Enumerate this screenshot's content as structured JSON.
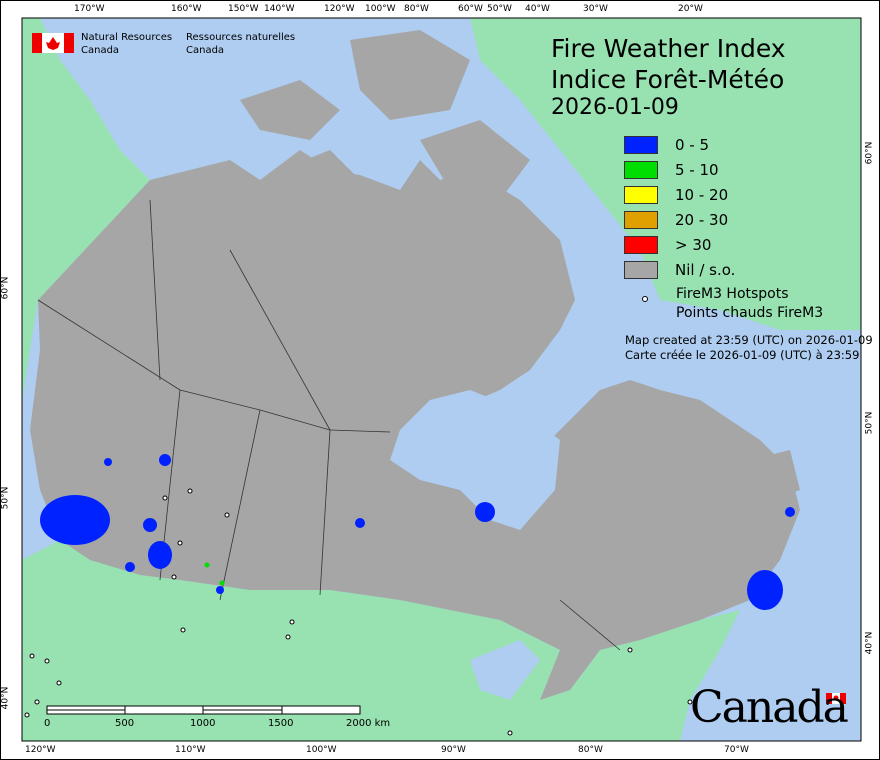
{
  "header": {
    "en_line1": "Natural Resources",
    "en_line2": "Canada",
    "fr_line1": "Ressources naturelles",
    "fr_line2": "Canada"
  },
  "title": {
    "en": "Fire Weather Index",
    "fr": "Indice Forêt-Météo",
    "date": "2026-01-09"
  },
  "legend": [
    {
      "label": "0 - 5",
      "color": "#0022ff"
    },
    {
      "label": "5 - 10",
      "color": "#00dd00"
    },
    {
      "label": "10 - 20",
      "color": "#ffff00"
    },
    {
      "label": "20 - 30",
      "color": "#e0a000"
    },
    {
      "label": "> 30",
      "color": "#ff0000"
    },
    {
      "label": "Nil / s.o.",
      "color": "#a6a6a6"
    }
  ],
  "hotspots": {
    "en": "FireM3 Hotspots",
    "fr": "Points chauds FireM3"
  },
  "created": {
    "en": "Map created at 23:59 (UTC) on 2026-01-09",
    "fr": "Carte créée le 2026-01-09 (UTC) à 23:59"
  },
  "top_ticks": [
    "170°W",
    "160°W",
    "150°W",
    "140°W",
    "120°W",
    "100°W",
    "80°W",
    "60°W",
    "50°W",
    "40°W",
    "30°W",
    "20°W"
  ],
  "bottom_ticks": [
    "120°W",
    "110°W",
    "100°W",
    "90°W",
    "80°W",
    "70°W"
  ],
  "left_ticks": [
    "60°N",
    "50°N",
    "40°N"
  ],
  "right_ticks": [
    "60°N",
    "50°N",
    "40°N"
  ],
  "scale": {
    "labels": [
      "0",
      "500",
      "1000",
      "1500",
      "2000 km"
    ]
  },
  "wordmark": "Canada",
  "colors": {
    "ocean": "#aecdf0",
    "land": "#98e2b2",
    "nil": "#a6a6a6"
  }
}
